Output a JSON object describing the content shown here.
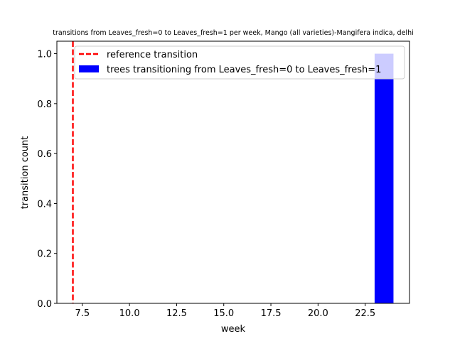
{
  "chart_data": {
    "type": "bar",
    "title": "transitions from Leaves_fresh=0 to Leaves_fresh=1 per week, Mango (all varieties)-Mangifera indica, delhi",
    "xlabel": "week",
    "ylabel": "transition count",
    "xlim": [
      6.15,
      24.85
    ],
    "ylim": [
      0,
      1.05
    ],
    "xticks": [
      7.5,
      10.0,
      12.5,
      15.0,
      17.5,
      20.0,
      22.5
    ],
    "xtick_labels": [
      "7.5",
      "10.0",
      "12.5",
      "15.0",
      "17.5",
      "20.0",
      "22.5"
    ],
    "yticks": [
      0.0,
      0.2,
      0.4,
      0.6,
      0.8,
      1.0
    ],
    "ytick_labels": [
      "0.0",
      "0.2",
      "0.4",
      "0.6",
      "0.8",
      "1.0"
    ],
    "grid": false,
    "legend_position": "top-right",
    "bars": [
      {
        "week_start": 23,
        "week_end": 24,
        "value": 1
      }
    ],
    "bar_color": "#0000ff",
    "reference_line": {
      "x": 7,
      "color": "#ff0000",
      "style": "dashed"
    },
    "legend": [
      {
        "label": "reference transition",
        "kind": "line",
        "color": "#ff0000"
      },
      {
        "label": "trees transitioning from Leaves_fresh=0 to Leaves_fresh=1",
        "kind": "patch",
        "color": "#0000ff"
      }
    ]
  }
}
